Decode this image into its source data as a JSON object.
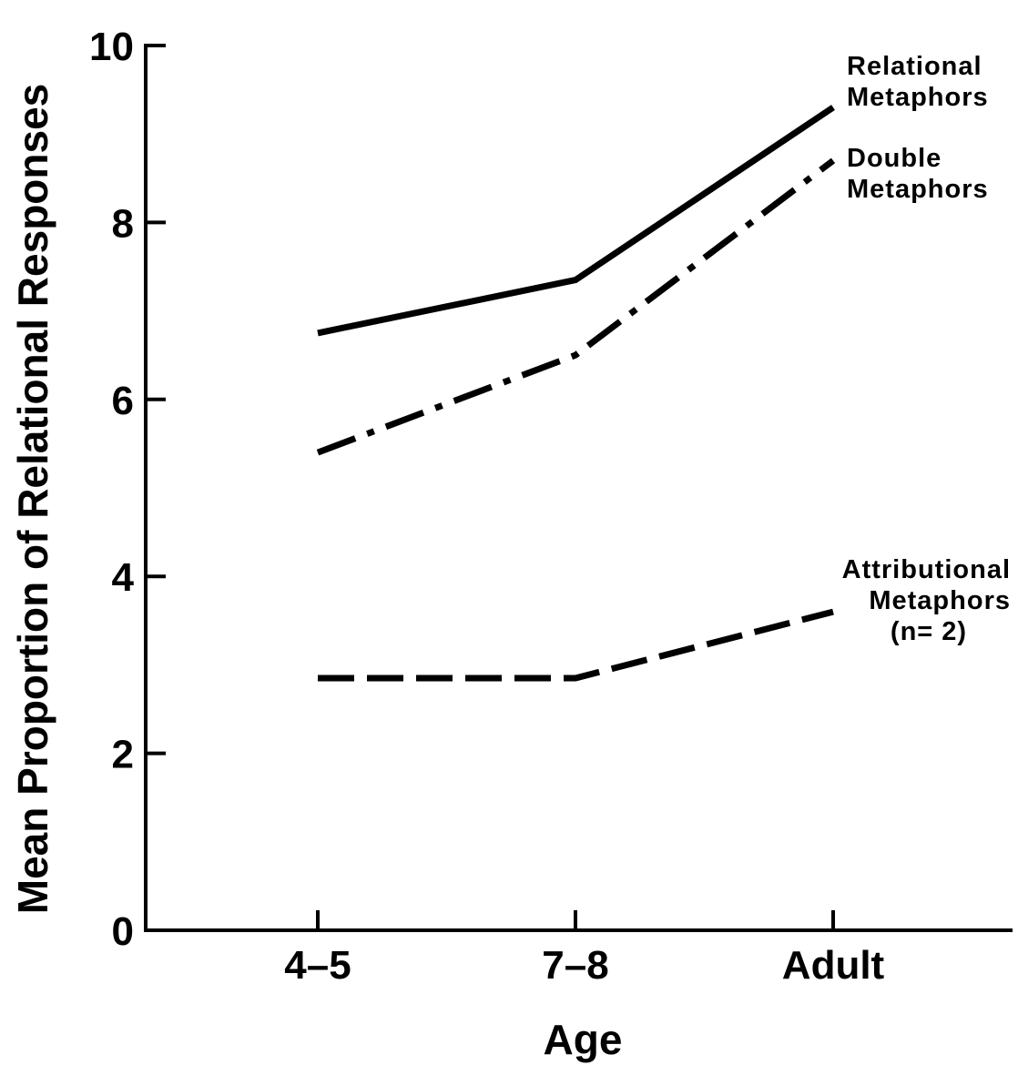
{
  "chart_data": {
    "type": "line",
    "title": "",
    "xlabel": "Age",
    "ylabel": "Mean Proportion of Relational Responses",
    "categories": [
      "4–5",
      "7–8",
      "Adult"
    ],
    "ylim": [
      0,
      10
    ],
    "yticks": [
      "0",
      "2",
      "4",
      "6",
      "8",
      "10"
    ],
    "grid": false,
    "series": [
      {
        "name": "Relational Metaphors",
        "label_lines": [
          "Relational",
          "Metaphors"
        ],
        "values": [
          6.75,
          7.35,
          9.3
        ],
        "dash": "solid",
        "color": "#000000"
      },
      {
        "name": "Double Metaphors",
        "label_lines": [
          "Double",
          "Metaphors"
        ],
        "values": [
          5.4,
          6.5,
          8.7
        ],
        "dash": "dash-dot",
        "color": "#000000"
      },
      {
        "name": "Attributional Metaphors (n= 2)",
        "label_lines": [
          "Attributional",
          "Metaphors",
          "(n= 2)"
        ],
        "values": [
          2.85,
          2.85,
          3.6
        ],
        "dash": "dashed",
        "color": "#000000"
      }
    ]
  }
}
